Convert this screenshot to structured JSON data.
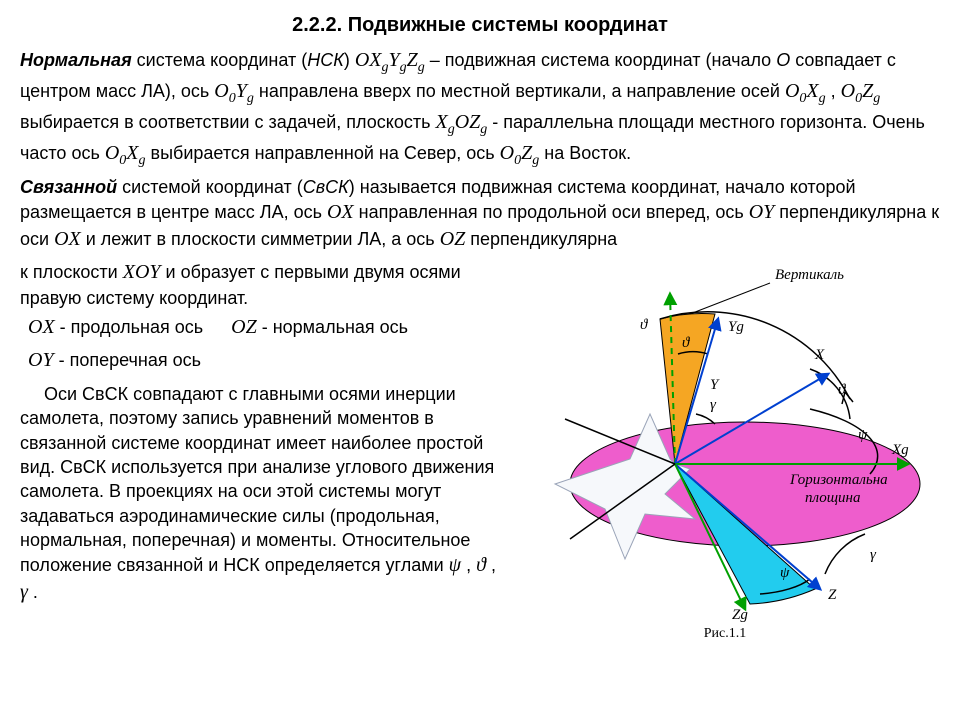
{
  "title": "2.2.2.  Подвижные системы координат",
  "p1_lead": "Нормальная",
  "p1_a": " система координат (",
  "p1_nsk": "НСК",
  "p1_b": ") ",
  "p1_c": " – подвижная система координат (начало ",
  "p1_O": "O",
  "p1_d": " совпадает с центром масс ЛА), ось ",
  "p1_e": " направлена вверх по местной вертикали, а направление осей ",
  "p1_f": " , ",
  "p1_g": " выбирается в соответствии с задачей, плоскость ",
  "p1_h": " - параллельна площади местного горизонта. Очень часто ось ",
  "p1_i": " выбирается направленной на Север, ось ",
  "p1_j": " на Восток.",
  "p2_lead": "Связанной",
  "p2_a": " системой координат (",
  "p2_svsk": "СвСК",
  "p2_b": ") называется подвижная система координат, начало которой размещается в центре масс ЛА, ось ",
  "p2_c": " направленная по продольной оси вперед, ось ",
  "p2_d": " перпендикулярна к оси ",
  "p2_e": " и лежит в плоскости симметрии ЛА, а ось ",
  "p2_f": " перпендикулярна",
  "p3_a": " к плоскости ",
  "p3_b": " и образует с первыми двумя осями правую систему координат.",
  "axdef_ox": " - продольная ось",
  "axdef_oy": " - поперечная ось",
  "axdef_oz": " - нормальная ось",
  "p4": "Оси СвСК совпадают с главными осями инерции самолета, поэтому запись уравнений моментов в связанной системе координат имеет наиболее простой вид. СвСК используется при анализе углового движения самолета. В проекциях на оси этой системы могут задаваться аэродинамические силы (продольная, нормальная, поперечная) и моменты. Относительное положение связанной и НСК определяется углами ",
  "p4_tail": " .",
  "sym": {
    "OXgYgZg": "OX",
    "O0Yg": "O",
    "O0Xg": "O",
    "O0Zg": "O",
    "XgOZg": "X",
    "OX": "OX",
    "OY": "OY",
    "OZ": "OZ",
    "XOY": "XOY",
    "psi": "ψ",
    "theta": "ϑ",
    "gamma": "γ",
    "comma": " , "
  },
  "diagram": {
    "colors": {
      "orange": "#f5a623",
      "magenta": "#ec4bc7",
      "cyan": "#22ccee",
      "green": "#00a000",
      "blue": "#0040d0",
      "black": "#000000"
    },
    "labels": {
      "vertical": "Вертикаль",
      "Yg": "Yg",
      "Y": "Y",
      "X": "X",
      "Xg": "Xg",
      "horiz1": "Горизонтальна",
      "horiz2": "площина",
      "Zg": "Zg",
      "Z": "Z",
      "psi": "ψ",
      "theta": "ϑ",
      "gamma": "γ",
      "caption": "Рис.1.1"
    }
  }
}
